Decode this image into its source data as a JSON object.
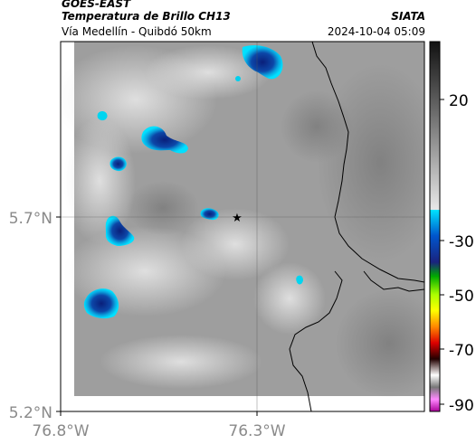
{
  "header": {
    "satellite": "GOES-EAST",
    "product": "Temperatura de Brillo CH13",
    "region": "Vía Medellín - Quibdó 50km",
    "agency": "SIATA",
    "datetime": "2024-10-04 05:09"
  },
  "map": {
    "lat_ticks": [
      {
        "label": "5.7°N",
        "value": 5.7
      },
      {
        "label": "5.2°N",
        "value": 5.2
      }
    ],
    "lon_ticks": [
      {
        "label": "76.8°W",
        "value": -76.8
      },
      {
        "label": "76.3°W",
        "value": -76.3
      }
    ],
    "marker": {
      "name": "star-marker",
      "symbol": "★"
    },
    "background_color": "#9a9a9a",
    "boundary_color": "#000000"
  },
  "colorbar": {
    "ticks": [
      {
        "label": "20",
        "value": 20
      },
      {
        "label": "-30",
        "value": -30
      },
      {
        "label": "-50",
        "value": -50
      },
      {
        "label": "-70",
        "value": -70
      },
      {
        "label": "-90",
        "value": -90
      }
    ],
    "colors": [
      "#111111",
      "#ffffff",
      "#00ccee",
      "#003399",
      "#00cc00",
      "#ffff00",
      "#ff6600",
      "#000000",
      "#ff99ff"
    ]
  }
}
